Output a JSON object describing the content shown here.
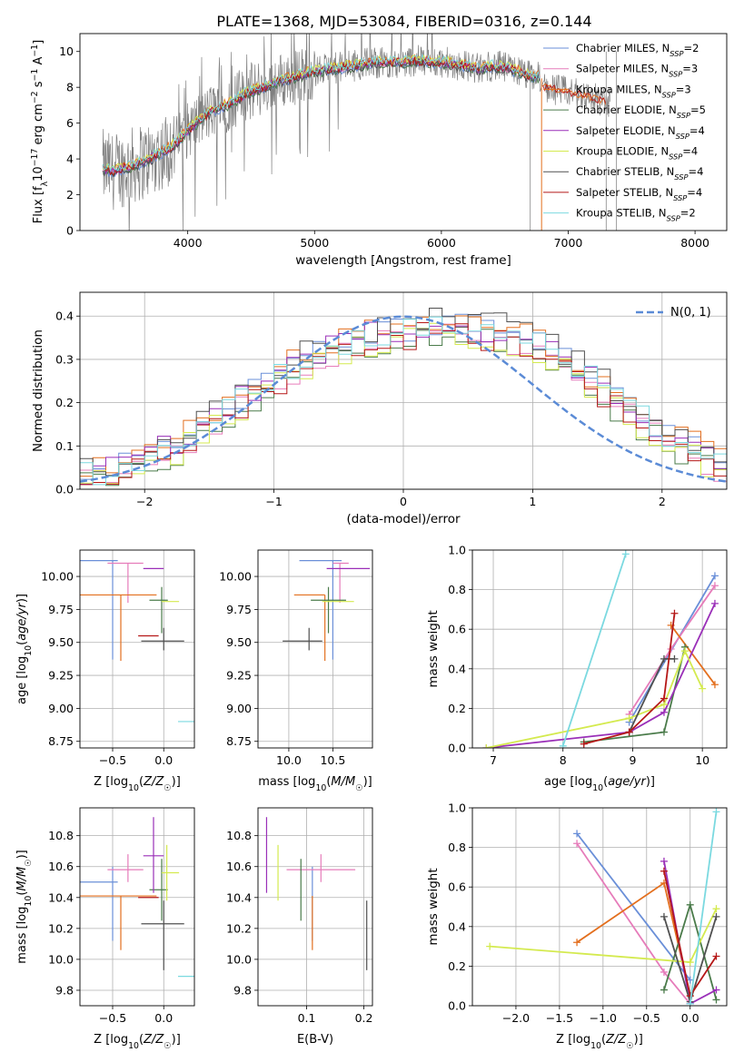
{
  "figure": {
    "title": "PLATE=1368, MJD=53084, FIBERID=0316, z=0.144"
  },
  "colors": {
    "Chabrier MILES": "#6a8fd8",
    "Salpeter MILES": "#e67cba",
    "Kroupa MILES": "#e36f1e",
    "Chabrier ELODIE": "#4a7b4a",
    "Salpeter ELODIE": "#9a2fb8",
    "Kroupa ELODIE": "#d4ea4f",
    "Chabrier STELIB": "#505050",
    "Salpeter STELIB": "#b51717",
    "Kroupa STELIB": "#7bd9e0",
    "data": "#808080",
    "normal": "#5b8bd6"
  },
  "chart_data": [
    {
      "panel": "spectrum",
      "type": "line",
      "xlabel": "wavelength [Angstrom, rest frame]",
      "ylabel": "Flux [f_λ 10^-17 erg cm^-2 s^-1 A^-1]",
      "xlim": [
        3150,
        8250
      ],
      "ylim": [
        0,
        11
      ],
      "xticks": [
        4000,
        5000,
        6000,
        7000,
        8000
      ],
      "yticks": [
        0,
        2,
        4,
        6,
        8,
        10
      ],
      "legend_position": "top-right",
      "legend": [
        {
          "name": "Chabrier MILES",
          "nssp": "2"
        },
        {
          "name": "Salpeter MILES",
          "nssp": "3"
        },
        {
          "name": "Kroupa MILES",
          "nssp": "3"
        },
        {
          "name": "Chabrier ELODIE",
          "nssp": "5"
        },
        {
          "name": "Salpeter ELODIE",
          "nssp": "4"
        },
        {
          "name": "Kroupa ELODIE",
          "nssp": "4"
        },
        {
          "name": "Chabrier STELIB",
          "nssp": "4"
        },
        {
          "name": "Salpeter STELIB",
          "nssp": "4"
        },
        {
          "name": "Kroupa STELIB",
          "nssp": "2"
        }
      ],
      "model_curve": {
        "x": [
          3330,
          3400,
          3500,
          3600,
          3700,
          3800,
          3900,
          4000,
          4100,
          4200,
          4300,
          4400,
          4500,
          4600,
          4700,
          4800,
          4900,
          5000,
          5100,
          5200,
          5300,
          5400,
          5500,
          5600,
          5700,
          5800,
          5900,
          6000,
          6100,
          6200,
          6300,
          6400,
          6500,
          6600,
          6700,
          6780
        ],
        "y": [
          3.5,
          3.3,
          3.5,
          3.7,
          4.0,
          4.4,
          4.8,
          5.6,
          6.2,
          6.7,
          7.0,
          7.4,
          7.8,
          8.0,
          8.3,
          8.5,
          8.7,
          8.9,
          9.0,
          9.1,
          9.2,
          9.3,
          9.4,
          9.4,
          9.4,
          9.5,
          9.4,
          9.4,
          9.3,
          9.2,
          9.0,
          9.2,
          9.1,
          8.9,
          8.6,
          8.6
        ]
      },
      "model_curve_red": {
        "x": [
          6800,
          6900,
          7000,
          7100,
          7200,
          7250,
          7300
        ],
        "y": [
          8.0,
          7.9,
          7.7,
          7.6,
          7.4,
          7.3,
          7.2
        ]
      }
    },
    {
      "panel": "residuals",
      "type": "line",
      "xlabel": "(data-model)/error",
      "ylabel": "Normed distribution",
      "xlim": [
        -2.5,
        2.5
      ],
      "ylim": [
        0,
        0.455
      ],
      "xticks": [
        -2,
        -1,
        0,
        1,
        2
      ],
      "yticks": [
        0.0,
        0.1,
        0.2,
        0.3,
        0.4
      ],
      "legend_position": "top-right",
      "normal_label": "N(0, 1)",
      "hist_base": [
        0.03,
        0.035,
        0.04,
        0.05,
        0.058,
        0.07,
        0.083,
        0.1,
        0.12,
        0.14,
        0.16,
        0.18,
        0.2,
        0.22,
        0.24,
        0.26,
        0.28,
        0.3,
        0.31,
        0.32,
        0.33,
        0.34,
        0.35,
        0.35,
        0.36,
        0.36,
        0.37,
        0.37,
        0.37,
        0.37,
        0.37,
        0.36,
        0.36,
        0.35,
        0.34,
        0.33,
        0.31,
        0.29,
        0.27,
        0.25,
        0.23,
        0.2,
        0.18,
        0.16,
        0.14,
        0.12,
        0.1,
        0.09,
        0.07,
        0.06
      ],
      "hist_offsets": [
        0.008,
        -0.012,
        0.015,
        -0.02,
        0.01,
        -0.015,
        0.02,
        -0.01,
        0.005
      ]
    },
    {
      "panel": "age-vs-metallicity",
      "type": "scatter",
      "xlabel": "Z [log10(Z/Z☉)]",
      "ylabel": "age [log10(age/yr)]",
      "xlim": [
        -0.82,
        0.3
      ],
      "ylim": [
        8.7,
        10.2
      ],
      "xticks": [
        -0.5,
        0.0
      ],
      "yticks": [
        8.75,
        9.0,
        9.25,
        9.5,
        9.75,
        10.0
      ]
    },
    {
      "panel": "age-vs-mass",
      "type": "scatter",
      "xlabel": "mass [log10(M/M☉)]",
      "xlim": [
        9.65,
        10.95
      ],
      "ylim": [
        8.7,
        10.2
      ],
      "xticks": [
        10.0,
        10.5
      ],
      "yticks": [
        8.75,
        9.0,
        9.25,
        9.5,
        9.75,
        10.0
      ]
    },
    {
      "panel": "mass-vs-metallicity",
      "type": "scatter",
      "xlabel": "Z [log10(Z/Z☉)]",
      "ylabel": "mass [log10(M/M☉)]",
      "xlim": [
        -0.82,
        0.3
      ],
      "ylim": [
        9.7,
        10.98
      ],
      "xticks": [
        -0.5,
        0.0
      ],
      "yticks": [
        9.8,
        10.0,
        10.2,
        10.4,
        10.6,
        10.8
      ]
    },
    {
      "panel": "mass-vs-ebv",
      "type": "scatter",
      "xlabel": "E(B-V)",
      "xlim": [
        0.015,
        0.215
      ],
      "ylim": [
        9.7,
        10.98
      ],
      "xticks": [
        0.1,
        0.2
      ],
      "yticks": [
        9.8,
        10.0,
        10.2,
        10.4,
        10.6,
        10.8
      ]
    },
    {
      "panel": "massweight-vs-age",
      "type": "line",
      "xlabel": "age [log10(age/yr)]",
      "ylabel": "mass weight",
      "xlim": [
        6.7,
        10.35
      ],
      "ylim": [
        0,
        1
      ],
      "xticks": [
        7,
        8,
        9,
        10
      ],
      "yticks": [
        0.0,
        0.2,
        0.4,
        0.6,
        0.8,
        1.0
      ]
    },
    {
      "panel": "massweight-vs-metallicity",
      "type": "line",
      "xlabel": "Z [log10(Z/Z☉)]",
      "ylabel": "mass weight",
      "xlim": [
        -2.5,
        0.42
      ],
      "ylim": [
        0,
        1
      ],
      "xticks": [
        -2.0,
        -1.5,
        -1.0,
        -0.5,
        0.0
      ],
      "yticks": [
        0.0,
        0.2,
        0.4,
        0.6,
        0.8,
        1.0
      ]
    }
  ],
  "models": [
    {
      "name": "Chabrier MILES",
      "z": -0.5,
      "zerr": [
        0.32,
        0.05
      ],
      "age": 10.12,
      "ageerr": [
        0.75,
        0.0
      ],
      "mass": 10.5,
      "masserr": [
        0.38,
        0.1
      ],
      "ebv": 0.11,
      "ebverr": [
        0.0,
        0.0
      ],
      "age_pts": [
        [
          8.95,
          0.13
        ],
        [
          10.18,
          0.87
        ]
      ],
      "z_pts": [
        [
          -1.3,
          0.87
        ],
        [
          0.0,
          0.13
        ]
      ]
    },
    {
      "name": "Salpeter MILES",
      "z": -0.35,
      "zerr": [
        0.2,
        0.15
      ],
      "age": 10.1,
      "ageerr": [
        0.3,
        0.0
      ],
      "mass": 10.58,
      "masserr": [
        0.08,
        0.1
      ],
      "ebv": 0.125,
      "ebverr": [
        0.06,
        0.06
      ],
      "age_pts": [
        [
          8.95,
          0.17
        ],
        [
          9.55,
          0.5
        ],
        [
          10.18,
          0.82
        ]
      ],
      "z_pts": [
        [
          -1.3,
          0.82
        ],
        [
          -0.3,
          0.17
        ],
        [
          0.0,
          0.01
        ]
      ]
    },
    {
      "name": "Kroupa MILES",
      "z": -0.42,
      "zerr": [
        0.4,
        0.35
      ],
      "age": 9.86,
      "ageerr": [
        0.5,
        0.0
      ],
      "mass": 10.41,
      "masserr": [
        0.35,
        0.0
      ],
      "ebv": 0.11,
      "ebverr": [
        0.0,
        0.0
      ],
      "age_pts": [
        [
          9.55,
          0.62
        ],
        [
          10.18,
          0.32
        ]
      ],
      "z_pts": [
        [
          -1.3,
          0.32
        ],
        [
          -0.3,
          0.62
        ],
        [
          0.0,
          0.05
        ]
      ]
    },
    {
      "name": "Chabrier ELODIE",
      "z": -0.02,
      "zerr": [
        0.12,
        0.06
      ],
      "age": 9.82,
      "ageerr": [
        0.25,
        0.1
      ],
      "mass": 10.45,
      "masserr": [
        0.2,
        0.2
      ],
      "ebv": 0.09,
      "ebverr": [
        0.0,
        0.0
      ],
      "age_pts": [
        [
          8.3,
          0.03
        ],
        [
          9.45,
          0.08
        ],
        [
          9.75,
          0.51
        ]
      ],
      "z_pts": [
        [
          -0.3,
          0.08
        ],
        [
          0.0,
          0.51
        ],
        [
          0.3,
          0.03
        ]
      ]
    },
    {
      "name": "Salpeter ELODIE",
      "z": -0.1,
      "zerr": [
        0.1,
        0.1
      ],
      "age": 10.06,
      "ageerr": [
        0.0,
        0.0
      ],
      "mass": 10.67,
      "masserr": [
        0.24,
        0.25
      ],
      "ebv": 0.03,
      "ebverr": [
        0.0,
        0.0
      ],
      "age_pts": [
        [
          6.9,
          0.0
        ],
        [
          8.95,
          0.08
        ],
        [
          9.45,
          0.18
        ],
        [
          10.18,
          0.73
        ]
      ],
      "z_pts": [
        [
          -0.3,
          0.73
        ],
        [
          0.0,
          0.01
        ],
        [
          0.3,
          0.08
        ]
      ]
    },
    {
      "name": "Kroupa ELODIE",
      "z": 0.03,
      "zerr": [
        0.05,
        0.12
      ],
      "age": 9.81,
      "ageerr": [
        0.0,
        0.0
      ],
      "mass": 10.56,
      "masserr": [
        0.18,
        0.18
      ],
      "ebv": 0.05,
      "ebverr": [
        0.0,
        0.0
      ],
      "age_pts": [
        [
          6.9,
          0.0
        ],
        [
          8.95,
          0.15
        ],
        [
          9.45,
          0.22
        ],
        [
          9.75,
          0.49
        ],
        [
          10.0,
          0.3
        ]
      ],
      "z_pts": [
        [
          -2.3,
          0.3
        ],
        [
          0.0,
          0.22
        ],
        [
          0.3,
          0.49
        ]
      ]
    },
    {
      "name": "Chabrier STELIB",
      "z": 0.0,
      "zerr": [
        0.22,
        0.2
      ],
      "age": 9.51,
      "ageerr": [
        0.07,
        0.1
      ],
      "mass": 10.23,
      "masserr": [
        0.3,
        0.15
      ],
      "ebv": 0.205,
      "ebverr": [
        0.0,
        0.0
      ],
      "age_pts": [
        [
          8.95,
          0.08
        ],
        [
          9.45,
          0.45
        ],
        [
          9.6,
          0.45
        ]
      ],
      "z_pts": [
        [
          -0.3,
          0.45
        ],
        [
          0.0,
          0.02
        ],
        [
          0.3,
          0.45
        ]
      ]
    },
    {
      "name": "Salpeter STELIB",
      "z": -0.05,
      "zerr": [
        0.2,
        0.0
      ],
      "age": 9.55,
      "ageerr": [
        0.0,
        0.0
      ],
      "mass": 10.4,
      "masserr": [
        0.0,
        0.0
      ],
      "ebv": 0.175,
      "ebverr": [
        0.0,
        0.0
      ],
      "age_pts": [
        [
          8.3,
          0.02
        ],
        [
          8.95,
          0.08
        ],
        [
          9.45,
          0.25
        ],
        [
          9.6,
          0.68
        ]
      ],
      "z_pts": [
        [
          -0.3,
          0.68
        ],
        [
          0.0,
          0.05
        ],
        [
          0.3,
          0.25
        ]
      ]
    },
    {
      "name": "Kroupa STELIB",
      "z": 0.22,
      "zerr": [
        0.08,
        0.1
      ],
      "age": 8.9,
      "ageerr": [
        0.0,
        0.0
      ],
      "mass": 9.89,
      "masserr": [
        0.0,
        0.0
      ],
      "ebv": 0.205,
      "ebverr": [
        0.0,
        0.0
      ],
      "age_pts": [
        [
          8.0,
          0.01
        ],
        [
          8.9,
          0.98
        ]
      ],
      "z_pts": [
        [
          0.0,
          0.01
        ],
        [
          0.3,
          0.98
        ]
      ]
    }
  ]
}
